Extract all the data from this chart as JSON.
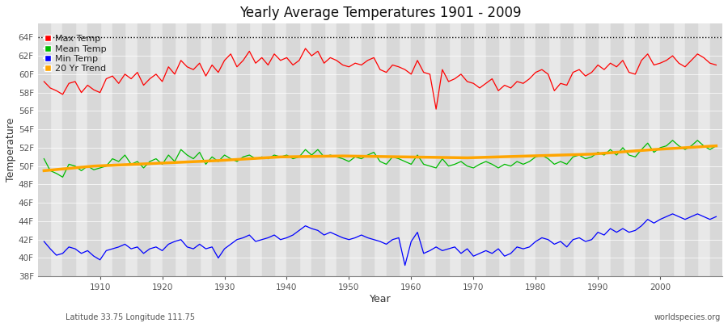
{
  "title": "Yearly Average Temperatures 1901 - 2009",
  "xlabel": "Year",
  "ylabel": "Temperature",
  "subtitle_left": "Latitude 33.75 Longitude 111.75",
  "subtitle_right": "worldspecies.org",
  "years": [
    1901,
    1902,
    1903,
    1904,
    1905,
    1906,
    1907,
    1908,
    1909,
    1910,
    1911,
    1912,
    1913,
    1914,
    1915,
    1916,
    1917,
    1918,
    1919,
    1920,
    1921,
    1922,
    1923,
    1924,
    1925,
    1926,
    1927,
    1928,
    1929,
    1930,
    1931,
    1932,
    1933,
    1934,
    1935,
    1936,
    1937,
    1938,
    1939,
    1940,
    1941,
    1942,
    1943,
    1944,
    1945,
    1946,
    1947,
    1948,
    1949,
    1950,
    1951,
    1952,
    1953,
    1954,
    1955,
    1956,
    1957,
    1958,
    1959,
    1960,
    1961,
    1962,
    1963,
    1964,
    1965,
    1966,
    1967,
    1968,
    1969,
    1970,
    1971,
    1972,
    1973,
    1974,
    1975,
    1976,
    1977,
    1978,
    1979,
    1980,
    1981,
    1982,
    1983,
    1984,
    1985,
    1986,
    1987,
    1988,
    1989,
    1990,
    1991,
    1992,
    1993,
    1994,
    1995,
    1996,
    1997,
    1998,
    1999,
    2000,
    2001,
    2002,
    2003,
    2004,
    2005,
    2006,
    2007,
    2008,
    2009
  ],
  "max_temp": [
    59.2,
    58.5,
    58.2,
    57.8,
    59.0,
    59.2,
    58.0,
    58.8,
    58.3,
    58.0,
    59.5,
    59.8,
    59.0,
    60.0,
    59.5,
    60.2,
    58.8,
    59.5,
    60.0,
    59.2,
    60.8,
    60.0,
    61.5,
    60.8,
    60.5,
    61.2,
    59.8,
    61.0,
    60.2,
    61.5,
    62.2,
    60.8,
    61.5,
    62.5,
    61.2,
    61.8,
    61.0,
    62.2,
    61.5,
    61.8,
    61.0,
    61.5,
    62.8,
    62.0,
    62.5,
    61.2,
    61.8,
    61.5,
    61.0,
    60.8,
    61.2,
    61.0,
    61.5,
    61.8,
    60.5,
    60.2,
    61.0,
    60.8,
    60.5,
    60.0,
    61.5,
    60.2,
    60.0,
    56.2,
    60.5,
    59.2,
    59.5,
    60.0,
    59.2,
    59.0,
    58.5,
    59.0,
    59.5,
    58.2,
    58.8,
    58.5,
    59.2,
    59.0,
    59.5,
    60.2,
    60.5,
    60.0,
    58.2,
    59.0,
    58.8,
    60.2,
    60.5,
    59.8,
    60.2,
    61.0,
    60.5,
    61.2,
    60.8,
    61.5,
    60.2,
    60.0,
    61.5,
    62.2,
    61.0,
    61.2,
    61.5,
    62.0,
    61.2,
    60.8,
    61.5,
    62.2,
    61.8,
    61.2,
    61.0
  ],
  "mean_temp": [
    50.8,
    49.5,
    49.2,
    48.8,
    50.2,
    50.0,
    49.5,
    50.0,
    49.6,
    49.8,
    50.0,
    50.8,
    50.5,
    51.2,
    50.2,
    50.5,
    49.8,
    50.5,
    50.8,
    50.2,
    51.2,
    50.5,
    51.8,
    51.2,
    50.8,
    51.5,
    50.2,
    51.0,
    50.5,
    51.2,
    50.8,
    50.5,
    51.0,
    51.2,
    50.8,
    51.0,
    50.8,
    51.2,
    51.0,
    51.2,
    50.8,
    51.0,
    51.8,
    51.2,
    51.8,
    51.0,
    51.2,
    51.0,
    50.8,
    50.5,
    51.0,
    50.8,
    51.2,
    51.5,
    50.5,
    50.2,
    51.0,
    50.8,
    50.5,
    50.2,
    51.2,
    50.2,
    50.0,
    49.8,
    50.8,
    50.0,
    50.2,
    50.5,
    50.0,
    49.8,
    50.2,
    50.5,
    50.2,
    49.8,
    50.2,
    50.0,
    50.5,
    50.2,
    50.5,
    51.0,
    51.2,
    50.8,
    50.2,
    50.5,
    50.2,
    51.0,
    51.2,
    50.8,
    51.0,
    51.5,
    51.2,
    51.8,
    51.2,
    52.0,
    51.2,
    51.0,
    51.8,
    52.5,
    51.5,
    52.0,
    52.2,
    52.8,
    52.2,
    51.8,
    52.2,
    52.8,
    52.2,
    51.8,
    52.2
  ],
  "min_temp": [
    41.8,
    41.0,
    40.3,
    40.5,
    41.2,
    41.0,
    40.5,
    40.8,
    40.2,
    39.8,
    40.8,
    41.0,
    41.2,
    41.5,
    41.0,
    41.2,
    40.5,
    41.0,
    41.2,
    40.8,
    41.5,
    41.8,
    42.0,
    41.2,
    41.0,
    41.5,
    41.0,
    41.2,
    40.0,
    41.0,
    41.5,
    42.0,
    42.2,
    42.5,
    41.8,
    42.0,
    42.2,
    42.5,
    42.0,
    42.2,
    42.5,
    43.0,
    43.5,
    43.2,
    43.0,
    42.5,
    42.8,
    42.5,
    42.2,
    42.0,
    42.2,
    42.5,
    42.2,
    42.0,
    41.8,
    41.5,
    42.0,
    42.2,
    39.2,
    41.8,
    42.8,
    40.5,
    40.8,
    41.2,
    40.8,
    41.0,
    41.2,
    40.5,
    41.0,
    40.2,
    40.5,
    40.8,
    40.5,
    41.0,
    40.2,
    40.5,
    41.2,
    41.0,
    41.2,
    41.8,
    42.2,
    42.0,
    41.5,
    41.8,
    41.2,
    42.0,
    42.2,
    41.8,
    42.0,
    42.8,
    42.5,
    43.2,
    42.8,
    43.2,
    42.8,
    43.0,
    43.5,
    44.2,
    43.8,
    44.2,
    44.5,
    44.8,
    44.5,
    44.2,
    44.5,
    44.8,
    44.5,
    44.2,
    44.5
  ],
  "trend_years": [
    1901,
    1909,
    1919,
    1929,
    1939,
    1949,
    1959,
    1969,
    1979,
    1989,
    1999,
    2009
  ],
  "trend_vals": [
    49.5,
    50.0,
    50.3,
    50.6,
    51.0,
    51.1,
    51.0,
    50.9,
    51.1,
    51.3,
    51.8,
    52.2
  ],
  "ylim_min": 38,
  "ylim_max": 65,
  "yticks": [
    38,
    40,
    42,
    44,
    46,
    48,
    50,
    52,
    54,
    56,
    58,
    60,
    62,
    64
  ],
  "ytick_labels": [
    "38F",
    "40F",
    "42F",
    "44F",
    "46F",
    "48F",
    "50F",
    "52F",
    "54F",
    "56F",
    "58F",
    "60F",
    "62F",
    "64F"
  ],
  "fig_bg_color": "#ffffff",
  "plot_bg_color": "#e8e8e8",
  "stripe_color": "#d8d8d8",
  "max_color": "#ff0000",
  "mean_color": "#00bb00",
  "min_color": "#0000ff",
  "trend_color": "#ffa500",
  "grid_color": "#ffffff",
  "dotted_line_y": 64,
  "xlim_min": 1900,
  "xlim_max": 2010,
  "xtick_start": 1910,
  "xtick_end": 2001,
  "xtick_step": 10
}
